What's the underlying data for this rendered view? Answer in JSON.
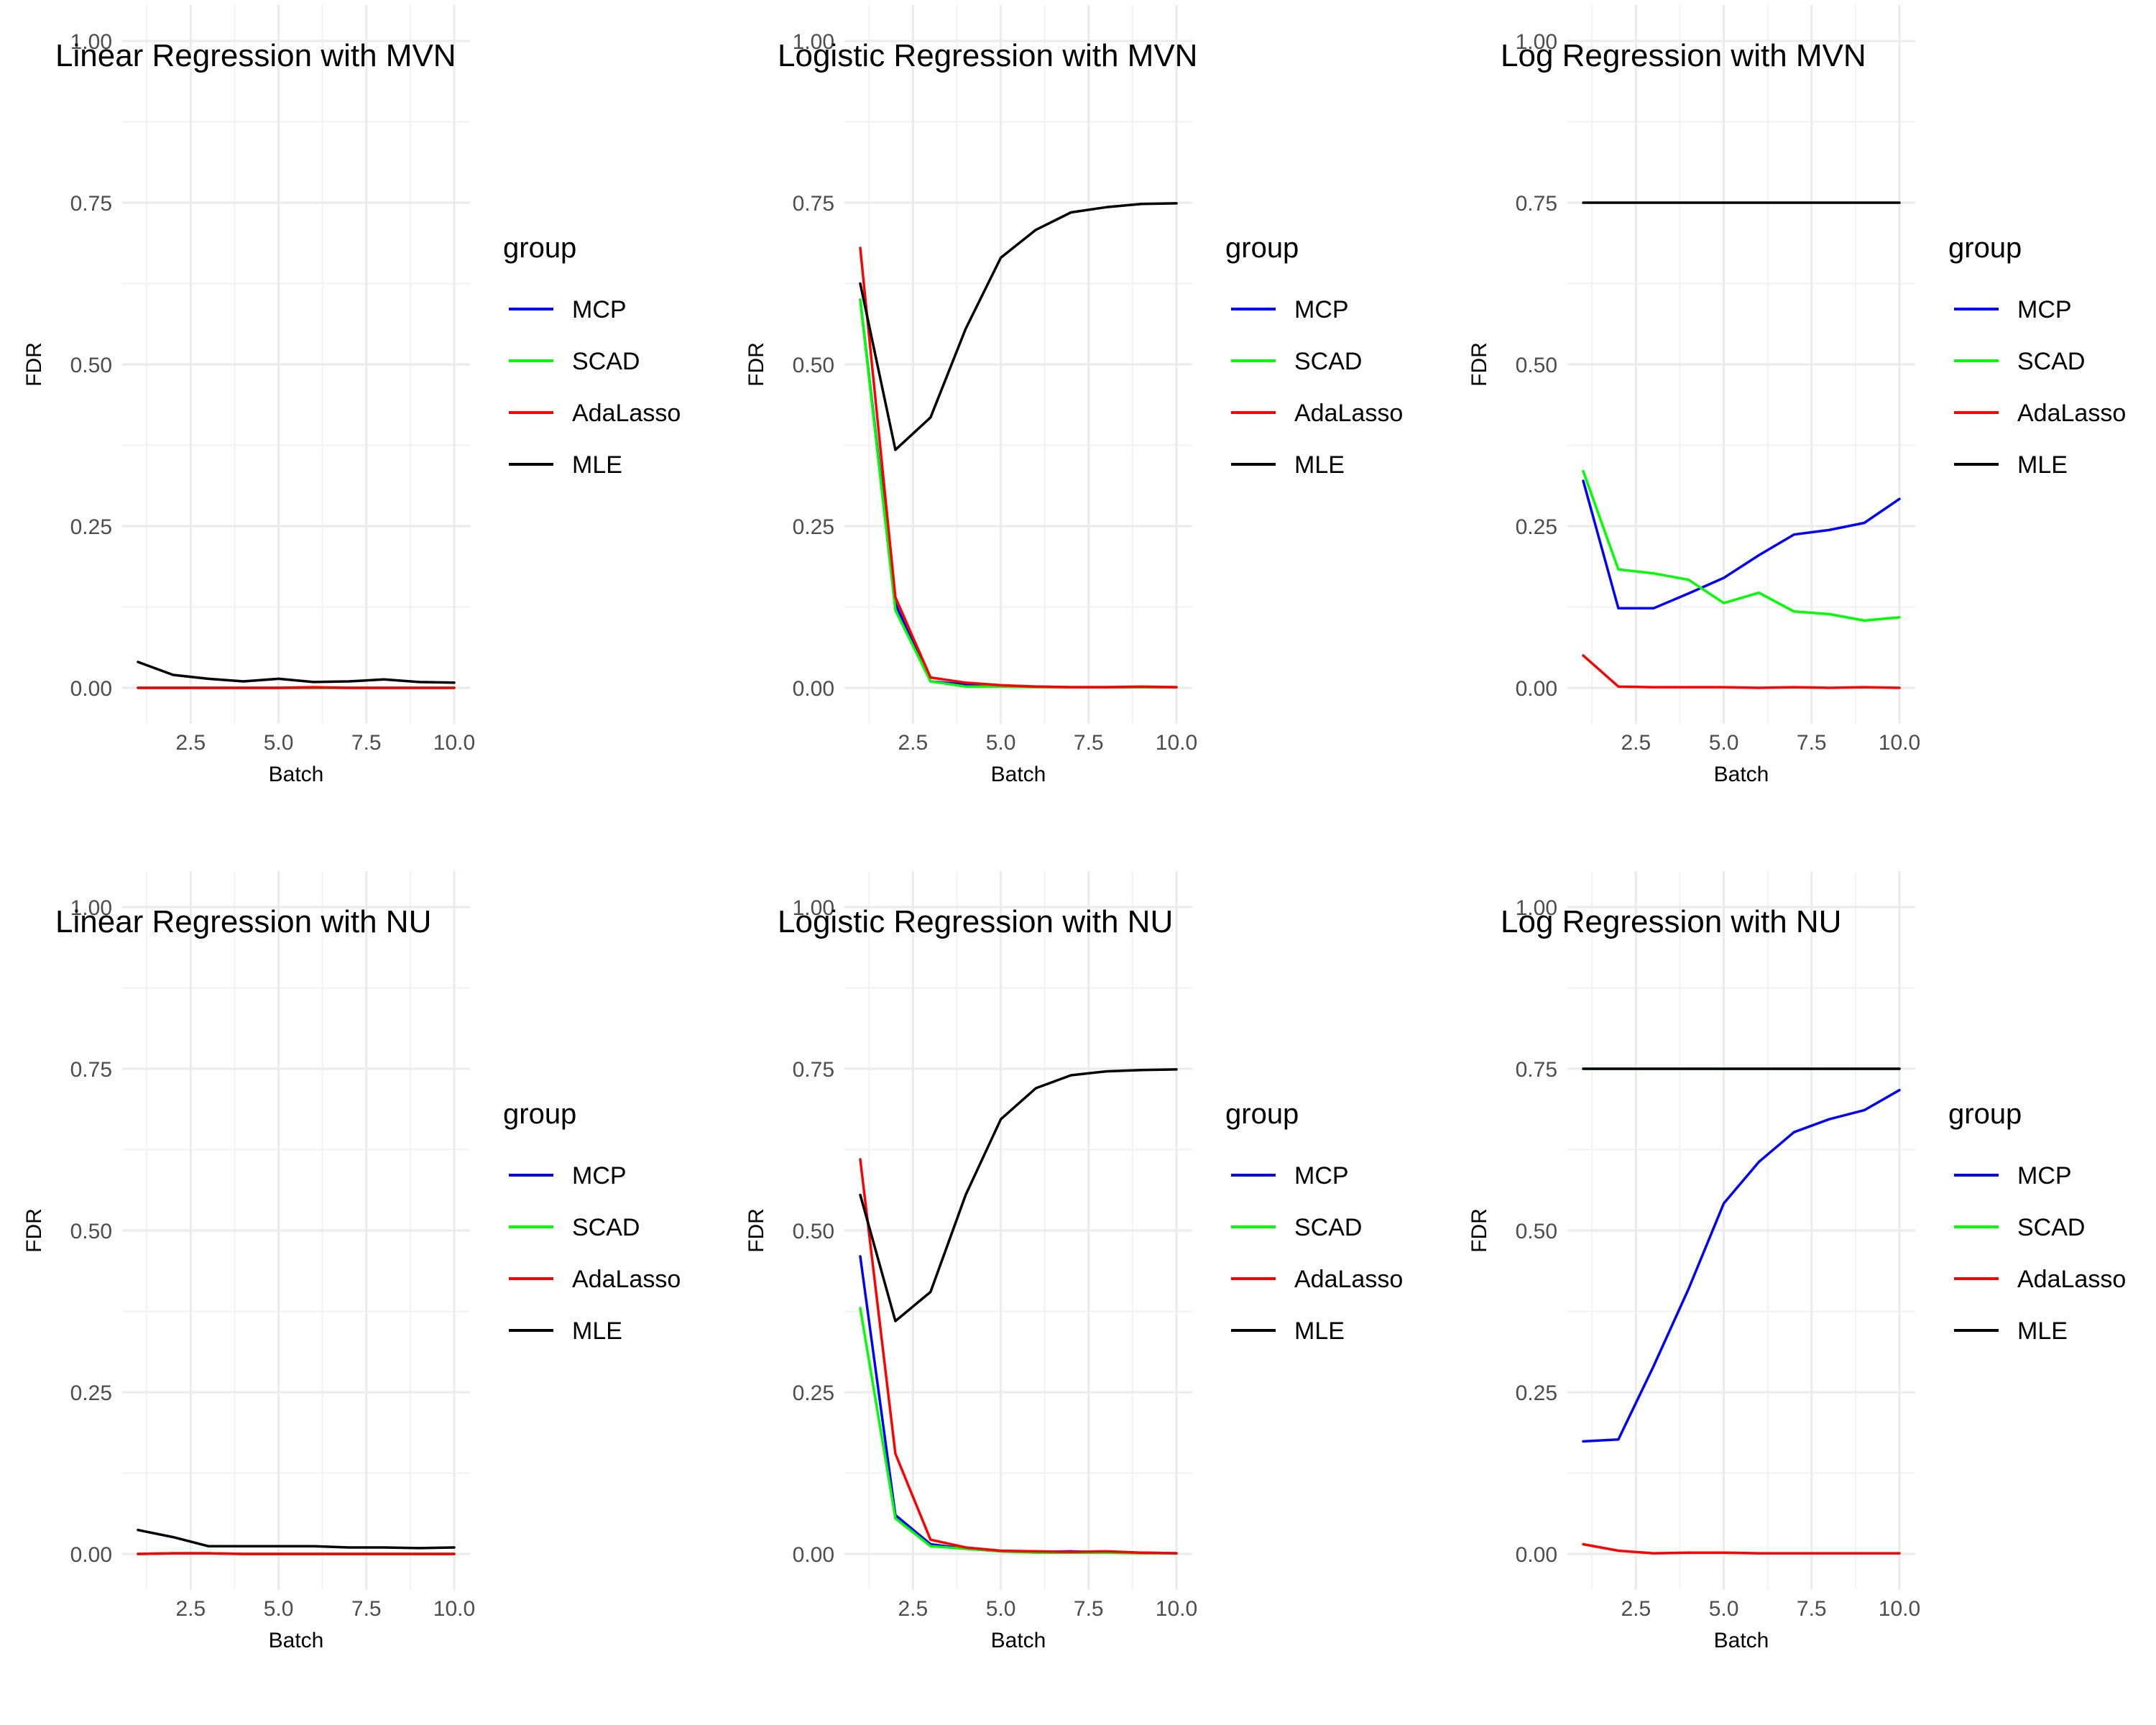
{
  "legend_title": "group",
  "colors": {
    "MCP": "#0000ff",
    "SCAD": "#00ff00",
    "AdaLasso": "#ff0000",
    "MLE": "#000000"
  },
  "chart_data": [
    {
      "type": "line",
      "title": "Linear Regression with MVN",
      "xlabel": "Batch",
      "ylabel": "FDR",
      "xlim": [
        1,
        10
      ],
      "ylim": [
        0,
        1
      ],
      "xticks": [
        "2.5",
        "5.0",
        "7.5",
        "10.0"
      ],
      "yticks": [
        "0.00",
        "0.25",
        "0.50",
        "0.75",
        "1.00"
      ],
      "legend": [
        "MCP",
        "SCAD",
        "AdaLasso",
        "MLE"
      ],
      "x": [
        1,
        2,
        3,
        4,
        5,
        6,
        7,
        8,
        9,
        10
      ],
      "series": [
        {
          "name": "MCP",
          "values": [
            0,
            0,
            0,
            0,
            0,
            0,
            0,
            0,
            0,
            0
          ]
        },
        {
          "name": "SCAD",
          "values": [
            0,
            0,
            0,
            0,
            0,
            0,
            0,
            0,
            0,
            0
          ]
        },
        {
          "name": "AdaLasso",
          "values": [
            0,
            0,
            0,
            0,
            0,
            0.001,
            0,
            0,
            0,
            0
          ]
        },
        {
          "name": "MLE",
          "values": [
            0.04,
            0.02,
            0.014,
            0.01,
            0.014,
            0.009,
            0.01,
            0.013,
            0.009,
            0.008
          ]
        }
      ]
    },
    {
      "type": "line",
      "title": "Logistic Regression with MVN",
      "xlabel": "Batch",
      "ylabel": "FDR",
      "xlim": [
        1,
        10
      ],
      "ylim": [
        0,
        1
      ],
      "xticks": [
        "2.5",
        "5.0",
        "7.5",
        "10.0"
      ],
      "yticks": [
        "0.00",
        "0.25",
        "0.50",
        "0.75",
        "1.00"
      ],
      "legend": [
        "MCP",
        "SCAD",
        "AdaLasso",
        "MLE"
      ],
      "x": [
        1,
        2,
        3,
        4,
        5,
        6,
        7,
        8,
        9,
        10
      ],
      "series": [
        {
          "name": "MCP",
          "values": [
            0.6,
            0.13,
            0.01,
            0.005,
            0.003,
            0.002,
            0.001,
            0.001,
            0.001,
            0.001
          ]
        },
        {
          "name": "SCAD",
          "values": [
            0.6,
            0.12,
            0.01,
            0.002,
            0.002,
            0.001,
            0.001,
            0.001,
            0.001,
            0.001
          ]
        },
        {
          "name": "AdaLasso",
          "values": [
            0.68,
            0.14,
            0.016,
            0.008,
            0.004,
            0.002,
            0.001,
            0.001,
            0.002,
            0.001
          ]
        },
        {
          "name": "MLE",
          "values": [
            0.625,
            0.368,
            0.418,
            0.555,
            0.665,
            0.708,
            0.735,
            0.743,
            0.748,
            0.749
          ]
        }
      ]
    },
    {
      "type": "line",
      "title": "Log Regression with MVN",
      "xlabel": "Batch",
      "ylabel": "FDR",
      "xlim": [
        1,
        10
      ],
      "ylim": [
        0,
        1
      ],
      "xticks": [
        "2.5",
        "5.0",
        "7.5",
        "10.0"
      ],
      "yticks": [
        "0.00",
        "0.25",
        "0.50",
        "0.75",
        "1.00"
      ],
      "legend": [
        "MCP",
        "SCAD",
        "AdaLasso",
        "MLE"
      ],
      "x": [
        1,
        2,
        3,
        4,
        5,
        6,
        7,
        8,
        9,
        10
      ],
      "series": [
        {
          "name": "MCP",
          "values": [
            0.32,
            0.123,
            0.123,
            0.146,
            0.17,
            0.205,
            0.237,
            0.244,
            0.255,
            0.292
          ]
        },
        {
          "name": "SCAD",
          "values": [
            0.335,
            0.183,
            0.177,
            0.167,
            0.131,
            0.147,
            0.118,
            0.114,
            0.104,
            0.109
          ]
        },
        {
          "name": "AdaLasso",
          "values": [
            0.05,
            0.002,
            0.001,
            0.001,
            0.001,
            0.0,
            0.001,
            0.0,
            0.001,
            0.0
          ]
        },
        {
          "name": "MLE",
          "values": [
            0.75,
            0.75,
            0.75,
            0.75,
            0.75,
            0.75,
            0.75,
            0.75,
            0.75,
            0.75
          ]
        }
      ]
    },
    {
      "type": "line",
      "title": "Linear Regression with NU",
      "xlabel": "Batch",
      "ylabel": "FDR",
      "xlim": [
        1,
        10
      ],
      "ylim": [
        0,
        1
      ],
      "xticks": [
        "2.5",
        "5.0",
        "7.5",
        "10.0"
      ],
      "yticks": [
        "0.00",
        "0.25",
        "0.50",
        "0.75",
        "1.00"
      ],
      "legend": [
        "MCP",
        "SCAD",
        "AdaLasso",
        "MLE"
      ],
      "x": [
        1,
        2,
        3,
        4,
        5,
        6,
        7,
        8,
        9,
        10
      ],
      "series": [
        {
          "name": "MCP",
          "values": [
            0,
            0.001,
            0.001,
            0,
            0,
            0,
            0,
            0,
            0,
            0
          ]
        },
        {
          "name": "SCAD",
          "values": [
            0,
            0.001,
            0.001,
            0,
            0,
            0,
            0,
            0,
            0,
            0
          ]
        },
        {
          "name": "AdaLasso",
          "values": [
            0,
            0.001,
            0.001,
            0,
            0,
            0,
            0,
            0,
            0,
            0
          ]
        },
        {
          "name": "MLE",
          "values": [
            0.037,
            0.026,
            0.012,
            0.012,
            0.012,
            0.012,
            0.01,
            0.01,
            0.009,
            0.01
          ]
        }
      ]
    },
    {
      "type": "line",
      "title": "Logistic Regression with NU",
      "xlabel": "Batch",
      "ylabel": "FDR",
      "xlim": [
        1,
        10
      ],
      "ylim": [
        0,
        1
      ],
      "xticks": [
        "2.5",
        "5.0",
        "7.5",
        "10.0"
      ],
      "yticks": [
        "0.00",
        "0.25",
        "0.50",
        "0.75",
        "1.00"
      ],
      "legend": [
        "MCP",
        "SCAD",
        "AdaLasso",
        "MLE"
      ],
      "x": [
        1,
        2,
        3,
        4,
        5,
        6,
        7,
        8,
        9,
        10
      ],
      "series": [
        {
          "name": "MCP",
          "values": [
            0.46,
            0.06,
            0.015,
            0.008,
            0.004,
            0.003,
            0.004,
            0.002,
            0.002,
            0.001
          ]
        },
        {
          "name": "SCAD",
          "values": [
            0.38,
            0.055,
            0.012,
            0.008,
            0.004,
            0.002,
            0.002,
            0.002,
            0.001,
            0.001
          ]
        },
        {
          "name": "AdaLasso",
          "values": [
            0.61,
            0.155,
            0.022,
            0.01,
            0.005,
            0.004,
            0.003,
            0.004,
            0.002,
            0.001
          ]
        },
        {
          "name": "MLE",
          "values": [
            0.555,
            0.36,
            0.405,
            0.555,
            0.672,
            0.72,
            0.74,
            0.746,
            0.748,
            0.749
          ]
        }
      ]
    },
    {
      "type": "line",
      "title": "Log Regression with NU",
      "xlabel": "Batch",
      "ylabel": "FDR",
      "xlim": [
        1,
        10
      ],
      "ylim": [
        0,
        1
      ],
      "xticks": [
        "2.5",
        "5.0",
        "7.5",
        "10.0"
      ],
      "yticks": [
        "0.00",
        "0.25",
        "0.50",
        "0.75",
        "1.00"
      ],
      "legend": [
        "MCP",
        "SCAD",
        "AdaLasso",
        "MLE"
      ],
      "x": [
        1,
        2,
        3,
        4,
        5,
        6,
        7,
        8,
        9,
        10
      ],
      "series": [
        {
          "name": "MCP",
          "values": [
            0.174,
            0.177,
            0.29,
            0.41,
            0.542,
            0.606,
            0.652,
            0.672,
            0.686,
            0.717
          ]
        },
        {
          "name": "SCAD",
          "values": [
            0.75,
            0.75,
            0.75,
            0.75,
            0.75,
            0.75,
            0.75,
            0.75,
            0.75,
            0.75
          ]
        },
        {
          "name": "AdaLasso",
          "values": [
            0.015,
            0.005,
            0.001,
            0.002,
            0.002,
            0.001,
            0.001,
            0.001,
            0.001,
            0.001
          ]
        },
        {
          "name": "MLE",
          "values": [
            0.75,
            0.75,
            0.75,
            0.75,
            0.75,
            0.75,
            0.75,
            0.75,
            0.75,
            0.75
          ]
        }
      ]
    }
  ]
}
